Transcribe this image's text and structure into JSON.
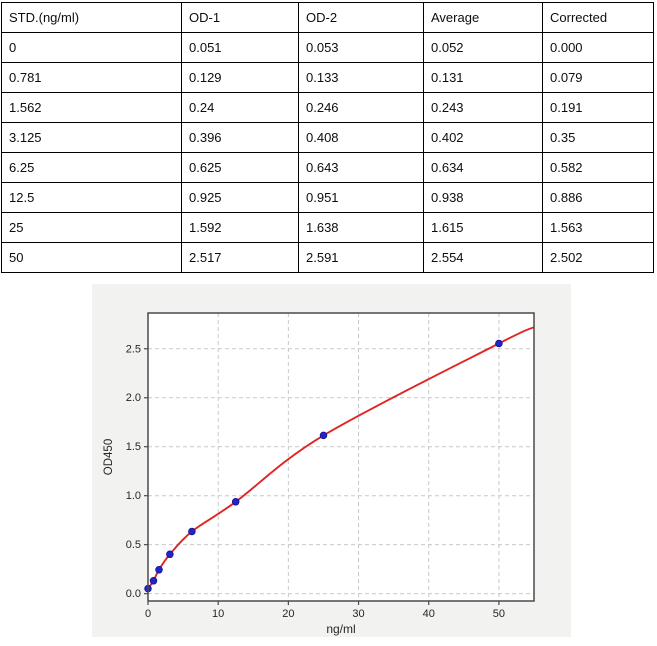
{
  "table": {
    "columns": [
      "STD.(ng/ml)",
      "OD-1",
      "OD-2",
      "Average",
      "Corrected"
    ],
    "rows": [
      [
        "0",
        "0.051",
        "0.053",
        "0.052",
        "0.000"
      ],
      [
        "0.781",
        "0.129",
        "0.133",
        "0.131",
        "0.079"
      ],
      [
        "1.562",
        "0.24",
        "0.246",
        "0.243",
        "0.191"
      ],
      [
        "3.125",
        "0.396",
        "0.408",
        "0.402",
        "0.35"
      ],
      [
        "6.25",
        "0.625",
        "0.643",
        "0.634",
        "0.582"
      ],
      [
        "12.5",
        "0.925",
        "0.951",
        "0.938",
        "0.886"
      ],
      [
        "25",
        "1.592",
        "1.638",
        "1.615",
        "1.563"
      ],
      [
        "50",
        "2.517",
        "2.591",
        "2.554",
        "2.502"
      ]
    ]
  },
  "chart_data": {
    "type": "scatter",
    "title": "",
    "x": [
      0,
      0.781,
      1.562,
      3.125,
      6.25,
      12.5,
      25,
      50
    ],
    "y": [
      0.052,
      0.131,
      0.243,
      0.402,
      0.634,
      0.938,
      1.615,
      2.554
    ],
    "series": [
      {
        "name": "Average OD450 standards",
        "type": "scatter"
      },
      {
        "name": "fitted standard curve",
        "type": "line"
      }
    ],
    "fit_extension": {
      "x": 55,
      "y": 2.72
    },
    "xlabel": "ng/ml",
    "ylabel": "OD450",
    "xticks": [
      0,
      10,
      20,
      30,
      40,
      50
    ],
    "yticks": [
      0.0,
      0.5,
      1.0,
      1.5,
      2.0,
      2.5
    ],
    "xlim": [
      0,
      55
    ],
    "ylim": [
      -0.075,
      2.865
    ],
    "grid": true,
    "grid_style": "dashed",
    "legend": false,
    "colors": {
      "points": "#2323c8",
      "point_edge": "#10108c",
      "curve": "#e02424",
      "grid": "#c9c9c9",
      "figure_bg": "#f2f2f1",
      "plot_bg": "#ffffff",
      "axis": "#4a4a4a",
      "text": "#262626"
    }
  }
}
